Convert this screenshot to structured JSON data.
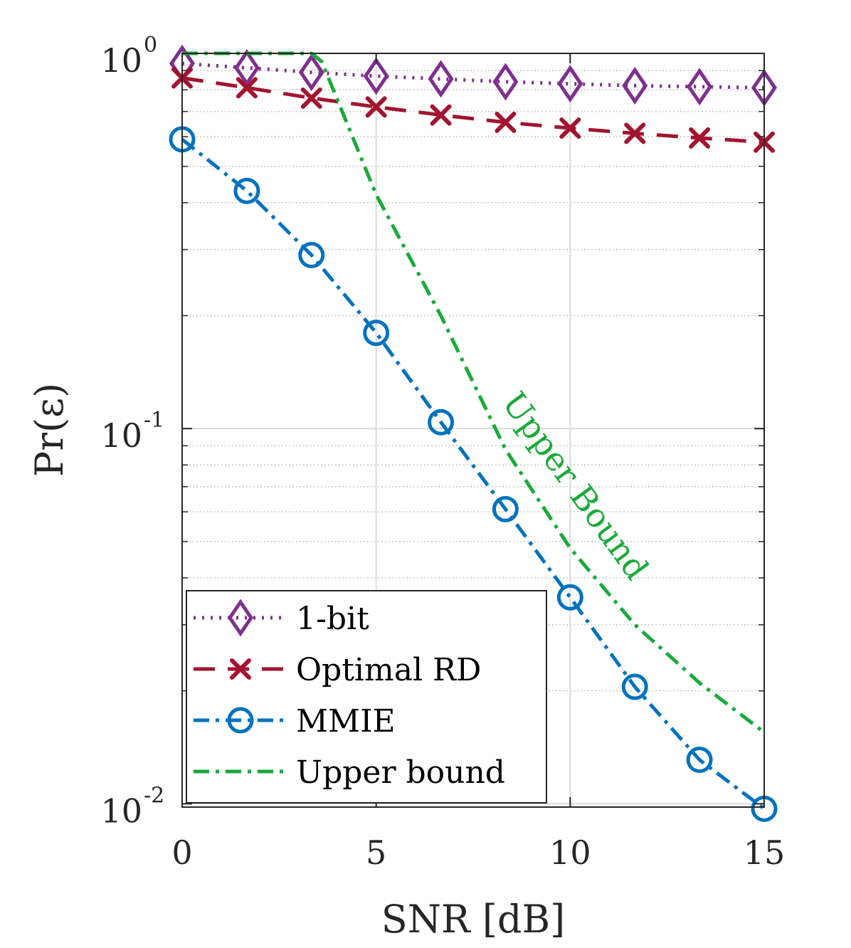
{
  "chart_data": {
    "type": "line",
    "title": "",
    "xlabel": "SNR [dB]",
    "ylabel": "Pr(ε)",
    "yscale": "log",
    "xlim": [
      0,
      15
    ],
    "ylim": [
      0.0098,
      1.0
    ],
    "grid": true,
    "legend_position": "bottom-left",
    "x_ticks": [
      {
        "value": 0,
        "label": "0"
      },
      {
        "value": 5,
        "label": "5"
      },
      {
        "value": 10,
        "label": "10"
      },
      {
        "value": 15,
        "label": "15"
      }
    ],
    "y_ticks": [
      {
        "value": 1,
        "base": "10",
        "exp": "0"
      },
      {
        "value": 0.1,
        "base": "10",
        "exp": "-1"
      },
      {
        "value": 0.01,
        "base": "10",
        "exp": "-2"
      }
    ],
    "series": [
      {
        "name": "1-bit",
        "color": "#7e2f8e",
        "dash": "dotted",
        "marker": "diamond",
        "x": [
          0,
          1.667,
          3.333,
          5,
          6.667,
          8.333,
          10,
          11.667,
          13.333,
          15
        ],
        "y": [
          0.94,
          0.915,
          0.89,
          0.87,
          0.855,
          0.84,
          0.83,
          0.82,
          0.815,
          0.81
        ]
      },
      {
        "name": "Optimal RD",
        "color": "#a2142f",
        "dash": "dashed",
        "marker": "x",
        "x": [
          0,
          1.667,
          3.333,
          5,
          6.667,
          8.333,
          10,
          11.667,
          13.333,
          15
        ],
        "y": [
          0.86,
          0.81,
          0.76,
          0.72,
          0.685,
          0.655,
          0.632,
          0.612,
          0.595,
          0.58
        ]
      },
      {
        "name": "MMIE",
        "color": "#0072bd",
        "dash": "dashdot",
        "marker": "circle",
        "x": [
          0,
          1.667,
          3.333,
          5,
          6.667,
          8.333,
          10,
          11.667,
          13.333,
          15
        ],
        "y": [
          0.59,
          0.43,
          0.29,
          0.18,
          0.104,
          0.061,
          0.0355,
          0.0205,
          0.0131,
          0.0097
        ]
      },
      {
        "name": "Upper bound",
        "color": "#1aaa3a",
        "dash": "dashdot",
        "marker": "none",
        "x": [
          0,
          3.333,
          3.6,
          5,
          6.667,
          8.333,
          10,
          11.667,
          13.333,
          15
        ],
        "y": [
          1.0,
          1.0,
          0.95,
          0.42,
          0.2,
          0.088,
          0.048,
          0.03,
          0.021,
          0.0155
        ]
      }
    ],
    "annotation": {
      "text": "Upper Bound",
      "color": "#1aaa3a"
    }
  }
}
